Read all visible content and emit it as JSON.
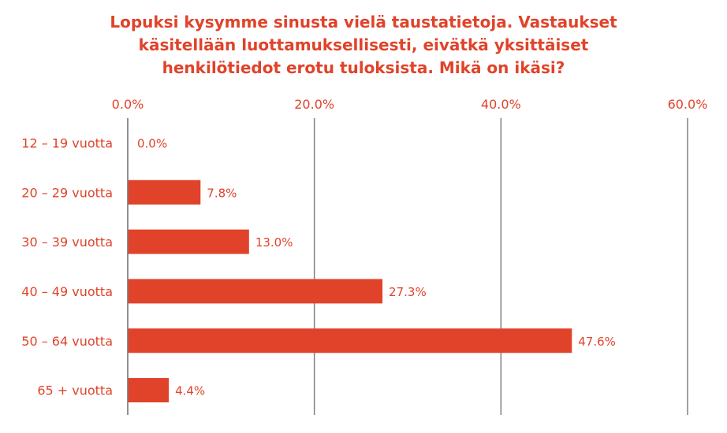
{
  "title_lines": [
    "Lopuksi kysymme sinusta vielä taustatietoja. Vastaukset",
    "käsitellään luottamuksellisesti, eivätkä yksittäiset",
    "henkilötiedot erotu tuloksista.  Mikä on ikäsi?"
  ],
  "chart_data": {
    "type": "bar",
    "orientation": "horizontal",
    "title": "Lopuksi kysymme sinusta vielä taustatietoja. Vastaukset käsitellään luottamuksellisesti, eivätkä yksittäiset henkilötiedot erotu tuloksista.  Mikä on ikäsi?",
    "categories": [
      "12 – 19 vuotta",
      "20 – 29 vuotta",
      "30 – 39 vuotta",
      "40 – 49 vuotta",
      "50 – 64 vuotta",
      "65 + vuotta"
    ],
    "values": [
      0.0,
      7.8,
      13.0,
      27.3,
      47.6,
      4.4
    ],
    "value_labels": [
      "0.0%",
      "7.8%",
      "13.0%",
      "27.3%",
      "47.6%",
      "4.4%"
    ],
    "xlim": [
      0,
      60
    ],
    "xticks": [
      0,
      20,
      40,
      60
    ],
    "xtick_labels": [
      "0.0%",
      "20.0%",
      "40.0%",
      "60.0%"
    ],
    "axis_position": "top",
    "grid": true,
    "bar_color": "#e0432a",
    "grid_color": "#808080",
    "text_color": "#e0432a"
  }
}
